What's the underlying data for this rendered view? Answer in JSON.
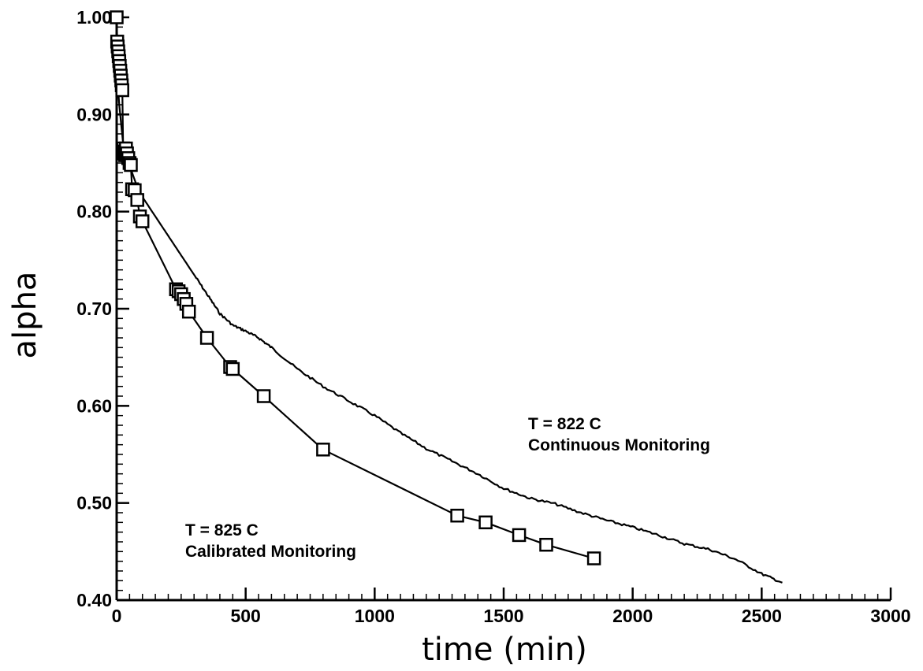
{
  "chart_data": {
    "type": "line",
    "title": "",
    "xlabel": "time  (min)",
    "ylabel": "alpha",
    "xlim": [
      0,
      3000
    ],
    "ylim": [
      0.4,
      1.0
    ],
    "x_ticks": [
      0,
      500,
      1000,
      1500,
      2000,
      2500,
      3000
    ],
    "x_tick_labels": [
      "0",
      "500",
      "1000",
      "1500",
      "2000",
      "2500",
      "3000"
    ],
    "y_ticks": [
      0.4,
      0.5,
      0.6,
      0.7,
      0.8,
      0.9,
      1.0
    ],
    "y_tick_labels": [
      "0.40",
      "0.50",
      "0.60",
      "0.70",
      "0.80",
      "0.90",
      "1.00"
    ],
    "grid": false,
    "legend": "none",
    "series": [
      {
        "style": "line",
        "color": "#000000",
        "x": [
          0,
          10,
          25,
          40,
          60,
          80,
          100,
          150,
          200,
          250,
          300,
          350,
          400,
          450,
          500,
          550,
          600,
          700,
          800,
          900,
          1000,
          1100,
          1200,
          1300,
          1400,
          1500,
          1600,
          1700,
          1800,
          1900,
          2000,
          2100,
          2200,
          2300,
          2400,
          2500,
          2580
        ],
        "y": [
          0.95,
          0.91,
          0.87,
          0.855,
          0.84,
          0.825,
          0.815,
          0.795,
          0.775,
          0.755,
          0.735,
          0.715,
          0.695,
          0.683,
          0.677,
          0.67,
          0.66,
          0.638,
          0.62,
          0.605,
          0.59,
          0.572,
          0.556,
          0.543,
          0.53,
          0.515,
          0.505,
          0.499,
          0.49,
          0.482,
          0.475,
          0.467,
          0.458,
          0.452,
          0.442,
          0.427,
          0.418
        ]
      },
      {
        "style": "line-markers",
        "marker": "square",
        "color": "#000000",
        "x": [
          0,
          2,
          4,
          6,
          8,
          10,
          12,
          14,
          16,
          18,
          20,
          22,
          25,
          28,
          30,
          33,
          36,
          40,
          45,
          50,
          55,
          60,
          70,
          80,
          90,
          100,
          230,
          240,
          250,
          260,
          270,
          280,
          350,
          440,
          450,
          570,
          800,
          1320,
          1430,
          1560,
          1665,
          1850
        ],
        "y": [
          1.0,
          0.975,
          0.97,
          0.965,
          0.96,
          0.955,
          0.95,
          0.945,
          0.94,
          0.935,
          0.93,
          0.925,
          0.865,
          0.862,
          0.86,
          0.858,
          0.865,
          0.86,
          0.855,
          0.85,
          0.848,
          0.823,
          0.822,
          0.812,
          0.795,
          0.79,
          0.72,
          0.718,
          0.715,
          0.71,
          0.705,
          0.697,
          0.67,
          0.64,
          0.638,
          0.61,
          0.555,
          0.487,
          0.48,
          0.467,
          0.457,
          0.443
        ]
      }
    ],
    "annotations": [
      {
        "line1": "T  =  822  C",
        "line2": "Continuous  Monitoring"
      },
      {
        "line1": "T  =  825  C",
        "line2": "Calibrated  Monitoring"
      }
    ]
  }
}
